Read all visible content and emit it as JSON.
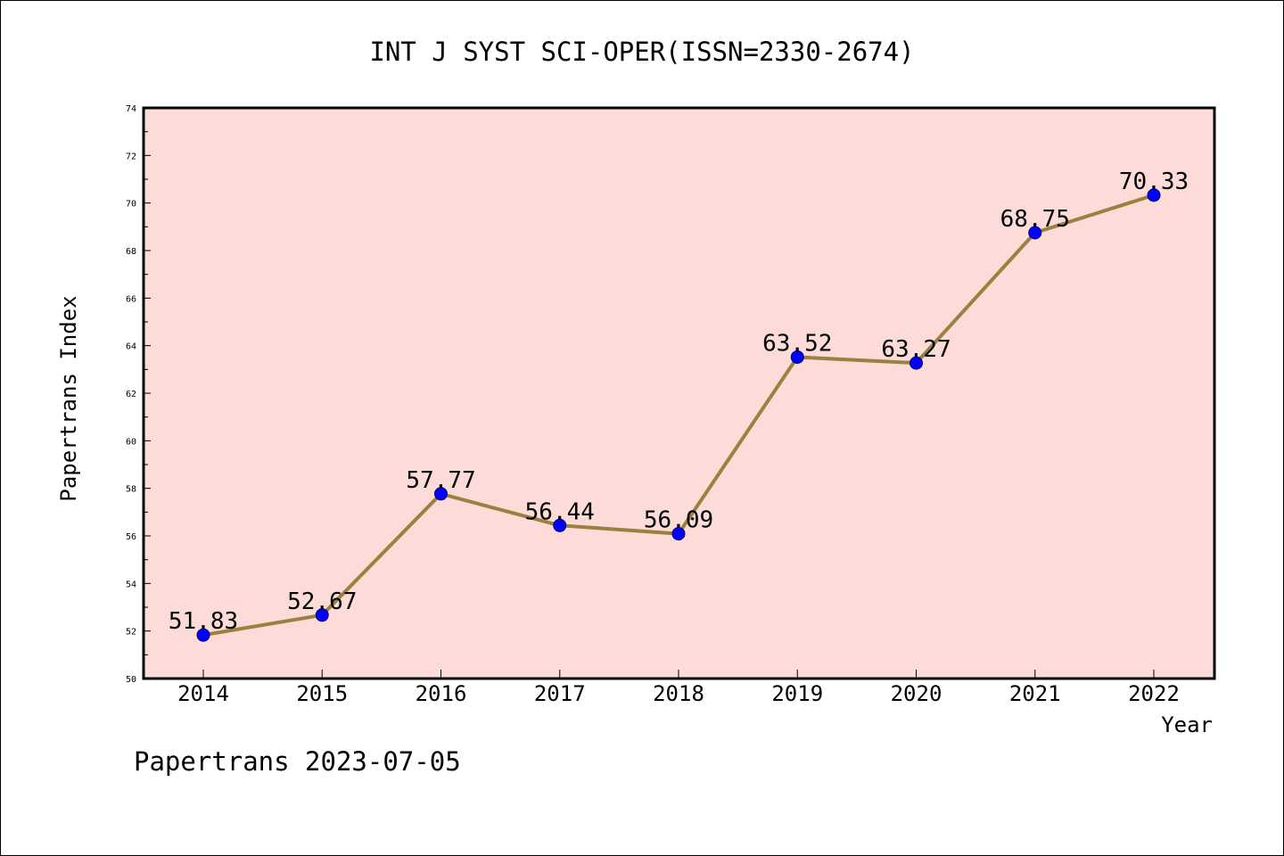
{
  "chart_data": {
    "type": "line",
    "title": "INT J SYST SCI-OPER(ISSN=2330-2674)",
    "xlabel": "Year",
    "ylabel": "Papertrans Index",
    "categories": [
      "2014",
      "2015",
      "2016",
      "2017",
      "2018",
      "2019",
      "2020",
      "2021",
      "2022"
    ],
    "series": [
      {
        "values": [
          51.83,
          52.67,
          57.77,
          56.44,
          56.09,
          63.52,
          63.27,
          68.75,
          70.33
        ],
        "labels": [
          "51.83",
          "52.67",
          "57.77",
          "56.44",
          "56.09",
          "63.52",
          "63.27",
          "68.75",
          "70.33"
        ]
      }
    ],
    "ylim": [
      50,
      74
    ],
    "yticks": [
      "50",
      "52",
      "54",
      "56",
      "58",
      "60",
      "62",
      "64",
      "66",
      "68",
      "70",
      "72",
      "74"
    ],
    "grid": false,
    "colors": {
      "plot_background": "#fddbd8",
      "line": "#9c8040",
      "marker": "#0000ff"
    }
  },
  "footer": "Papertrans 2023-07-05"
}
